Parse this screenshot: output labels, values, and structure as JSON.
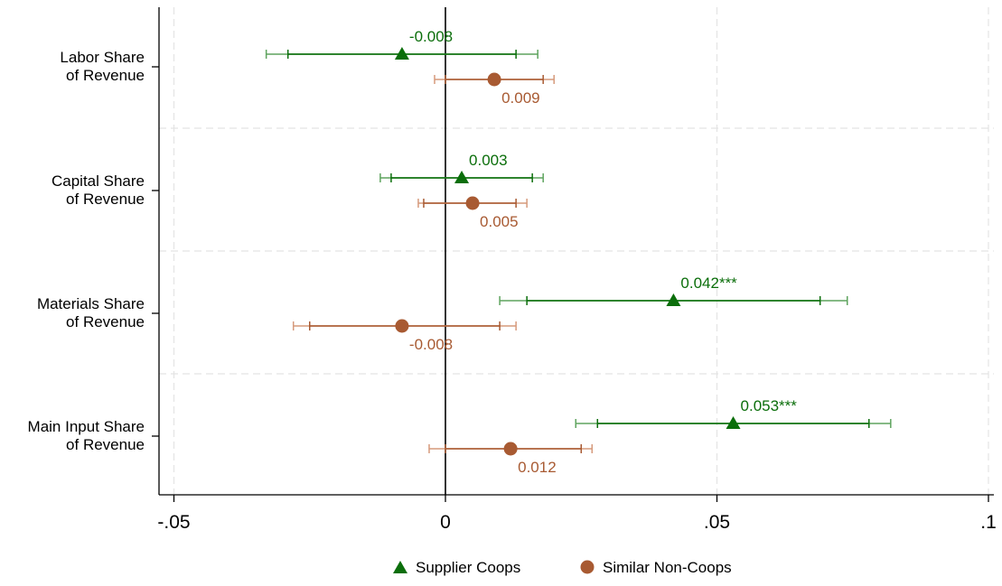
{
  "chart_data": {
    "type": "scatter",
    "subtype": "coefficient-plot",
    "title": "",
    "xlabel": "",
    "ylabel": "",
    "xlim": [
      -0.055,
      0.1
    ],
    "xticks": [
      -0.05,
      0,
      0.05,
      0.1
    ],
    "xtick_labels": [
      "-.05",
      "0",
      ".05",
      ".1"
    ],
    "reference_line_x": 0,
    "grid": true,
    "legend_position": "bottom",
    "categories": [
      [
        "Labor Share",
        "of Revenue"
      ],
      [
        "Capital Share",
        "of Revenue"
      ],
      [
        "Materials Share",
        "of Revenue"
      ],
      [
        "Main Input Share",
        "of Revenue"
      ]
    ],
    "series": [
      {
        "name": "Supplier Coops",
        "marker": "triangle",
        "color": "#0b6e0b",
        "ci_color": "#5fa45f",
        "estimates": [
          -0.008,
          0.003,
          0.042,
          0.053
        ],
        "ci_inner": [
          [
            -0.029,
            0.013
          ],
          [
            -0.01,
            0.016
          ],
          [
            0.015,
            0.069
          ],
          [
            0.028,
            0.078
          ]
        ],
        "ci_outer": [
          [
            -0.033,
            0.017
          ],
          [
            -0.012,
            0.018
          ],
          [
            0.01,
            0.074
          ],
          [
            0.024,
            0.082
          ]
        ],
        "labels": [
          "-0.008",
          "0.003",
          "0.042***",
          "0.053***"
        ]
      },
      {
        "name": "Similar Non-Coops",
        "marker": "circle",
        "color": "#a85a32",
        "ci_color": "#d69a7c",
        "estimates": [
          0.009,
          0.005,
          -0.008,
          0.012
        ],
        "ci_inner": [
          [
            0.0,
            0.018
          ],
          [
            -0.004,
            0.013
          ],
          [
            -0.025,
            0.01
          ],
          [
            0.0,
            0.025
          ]
        ],
        "ci_outer": [
          [
            -0.002,
            0.02
          ],
          [
            -0.005,
            0.015
          ],
          [
            -0.028,
            0.013
          ],
          [
            -0.003,
            0.027
          ]
        ],
        "labels": [
          "0.009",
          "0.005",
          "-0.008",
          "0.012"
        ]
      }
    ]
  }
}
